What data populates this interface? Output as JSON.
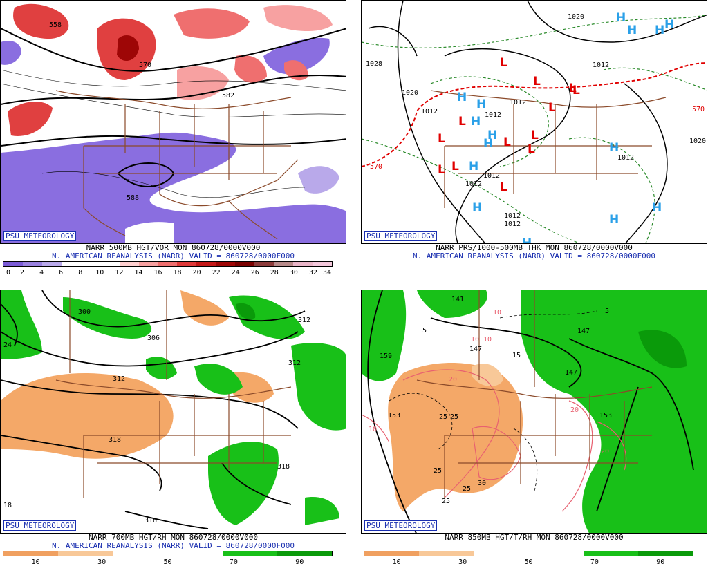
{
  "tag": "PSU METEOROLOGY",
  "panels": [
    {
      "caption": "NARR 500MB HGT/VOR MON 860728/0000V000",
      "subcaption": "N. AMERICAN REANALYSIS (NARR) VALID = 860728/0000F000",
      "scale_colors": [
        "#7b5bd6",
        "#9a82e0",
        "#b9a9ea",
        "#ffffff",
        "#ffffff",
        "#ffffff",
        "#ffd0d0",
        "#f7a1a1",
        "#ef6f6f",
        "#e03a3a",
        "#c41818",
        "#9e0606",
        "#7a0000",
        "#8c3b3b",
        "#b78a8a",
        "#e9b5c8",
        "#f4c8dc"
      ],
      "scale_ticks": [
        "0",
        "2",
        "4",
        "6",
        "8",
        "10",
        "12",
        "14",
        "16",
        "18",
        "20",
        "22",
        "24",
        "26",
        "28",
        "30",
        "32",
        "34"
      ],
      "labels": [
        "558",
        "570",
        "582",
        "588"
      ]
    },
    {
      "caption": "NARR PRS/1000-500MB THK MON 860728/0000V000",
      "subcaption": "N. AMERICAN REANALYSIS (NARR) VALID = 860728/0000F000",
      "labels": [
        "1020",
        "1028",
        "1020",
        "1012",
        "1012",
        "1012",
        "1012",
        "1012",
        "1020",
        "1012",
        "1012",
        "1012",
        "1012",
        "570",
        "570"
      ]
    },
    {
      "caption": "NARR 700MB HGT/RH MON 860728/0000V000",
      "subcaption": "N. AMERICAN REANALYSIS (NARR) VALID = 860728/0000F000",
      "scale_colors": [
        "#f0a060",
        "#f0a060",
        "#f8c898",
        "#f8c898",
        "#ffffff",
        "#ffffff",
        "#ffffff",
        "#ffffff",
        "#18c018",
        "#18c018",
        "#0a9a0a",
        "#0a9a0a"
      ],
      "scale_ticks": [
        "10",
        "30",
        "50",
        "70",
        "90"
      ],
      "labels": [
        "300",
        "306",
        "312",
        "318",
        "318",
        "318",
        "312",
        "312",
        "24",
        "18"
      ]
    },
    {
      "caption": "NARR 850MB HGT/T/RH MON 860728/0000V000",
      "labels": [
        "141",
        "147",
        "147",
        "153",
        "159",
        "153",
        "147",
        "5",
        "5",
        "15",
        "10",
        "10",
        "10",
        "10",
        "20",
        "20",
        "20",
        "25",
        "25",
        "25",
        "25",
        "25",
        "30"
      ],
      "scale_ticks": [
        "10",
        "30",
        "50",
        "70",
        "90"
      ]
    }
  ]
}
